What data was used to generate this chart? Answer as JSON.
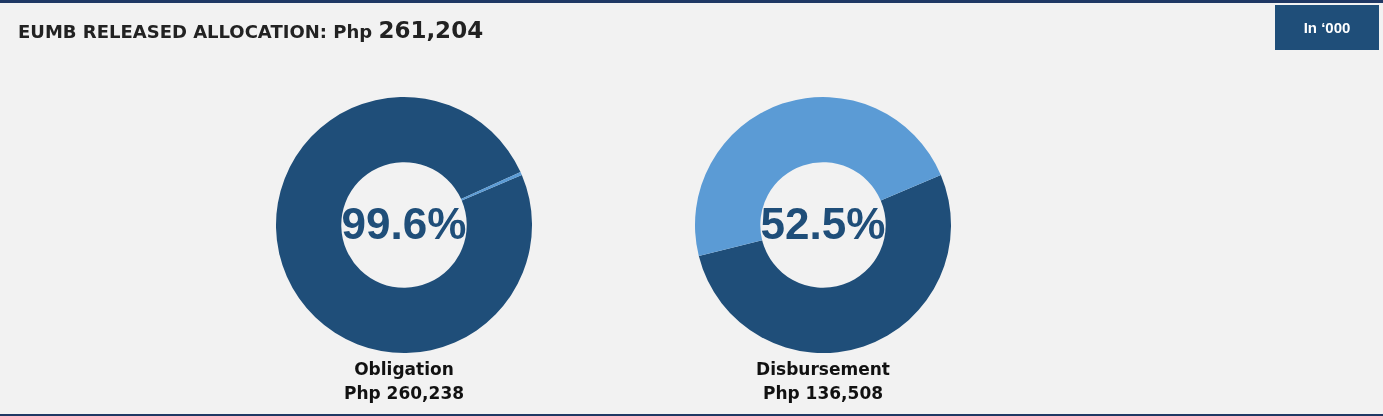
{
  "chart_data": [
    {
      "type": "other",
      "title": "EUMB RELEASED ALLOCATION: Php 261,204",
      "annotations": [
        "In ‘000"
      ]
    },
    {
      "type": "donut",
      "categories": [
        null,
        null
      ],
      "values": [
        99.6,
        0.4
      ],
      "colors": [
        "#1f4e79",
        "#5b9bd5"
      ],
      "xlabel": "Obligation",
      "annotations": [
        "99.6%",
        "Php 260,238"
      ],
      "legend": false
    },
    {
      "type": "donut",
      "categories": [
        null,
        null
      ],
      "values": [
        52.5,
        47.5
      ],
      "colors": [
        "#1f4e79",
        "#5b9bd5"
      ],
      "xlabel": "Disbursement",
      "annotations": [
        "52.5%",
        "Php 136,508"
      ],
      "legend": false
    }
  ]
}
